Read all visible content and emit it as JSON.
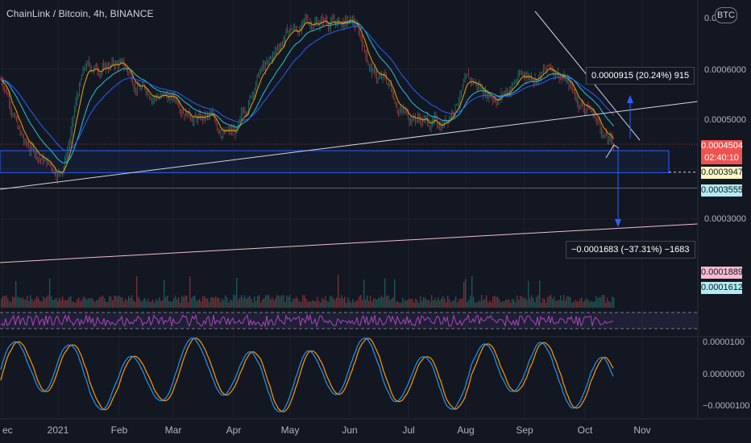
{
  "header": {
    "symbol_title": "ChainLink / Bitcoin, 4h, BINANCE",
    "currency": "BTC"
  },
  "colors": {
    "background": "#131722",
    "candle_up": "#26a69a",
    "candle_down": "#ef5350",
    "ema_fast": "#f7a600",
    "ema_mid": "#26c6da",
    "ema_slow": "#2962ff",
    "support_zone": "#2962ff",
    "trendline": "#d1d4dc",
    "rsi": "#ab47bc",
    "stoch_k": "#2196f3",
    "stoch_d": "#ff9800"
  },
  "annotations": {
    "upper_measure": "0.0000915 (20.24%) 915",
    "lower_measure": "−0.0001683 (−37.31%) −1683"
  },
  "price_scale": {
    "ticks": [
      "0.0",
      "0.0006000",
      "0.0005000",
      "0.0003000"
    ],
    "last_price": "0.0004504",
    "countdown": "02:40:10",
    "tag_yellow": "0.0003947",
    "tag_blue": "0.0003555",
    "tag_pink": "0.0001889",
    "tag_cyan": "0.0001612"
  },
  "osc_scale": {
    "ticks": [
      "0.0000100",
      "0.0000000",
      "−0.0000100"
    ]
  },
  "chart_data": {
    "type": "candlestick",
    "symbol": "LINKBTC",
    "timeframe": "4h",
    "x_ticks": [
      "ec",
      "2021",
      "Feb",
      "Mar",
      "Apr",
      "May",
      "Jun",
      "Jul",
      "Aug",
      "Sep",
      "Oct",
      "Nov"
    ],
    "y_ticks": [
      0.0006,
      0.0005,
      0.0003
    ],
    "approx_close_path": [
      {
        "x": "Dec",
        "y": 0.00058
      },
      {
        "x": "late Dec",
        "y": 0.00044
      },
      {
        "x": "2021",
        "y": 0.0004
      },
      {
        "x": "mid Jan",
        "y": 0.0006
      },
      {
        "x": "Feb",
        "y": 0.00061
      },
      {
        "x": "mid Feb",
        "y": 0.00056
      },
      {
        "x": "Mar",
        "y": 0.00054
      },
      {
        "x": "mid Mar",
        "y": 0.0005
      },
      {
        "x": "Apr",
        "y": 0.00047
      },
      {
        "x": "mid Apr",
        "y": 0.0006
      },
      {
        "x": "May",
        "y": 0.00068
      },
      {
        "x": "mid May",
        "y": 0.0007
      },
      {
        "x": "Jun",
        "y": 0.00069
      },
      {
        "x": "mid Jun",
        "y": 0.00058
      },
      {
        "x": "Jul",
        "y": 0.00051
      },
      {
        "x": "mid Jul",
        "y": 0.00049
      },
      {
        "x": "Aug",
        "y": 0.00057
      },
      {
        "x": "mid Aug",
        "y": 0.00055
      },
      {
        "x": "Sep",
        "y": 0.00059
      },
      {
        "x": "mid Sep",
        "y": 0.0006
      },
      {
        "x": "Oct",
        "y": 0.00053
      },
      {
        "x": "mid Oct",
        "y": 0.00045
      }
    ],
    "last_price": 0.0004504,
    "levels": [
      0.0003947,
      0.0003555
    ],
    "measures": [
      {
        "change": 9.15e-05,
        "percent": 20.24
      },
      {
        "change": -0.0001683,
        "percent": -37.31
      }
    ]
  }
}
